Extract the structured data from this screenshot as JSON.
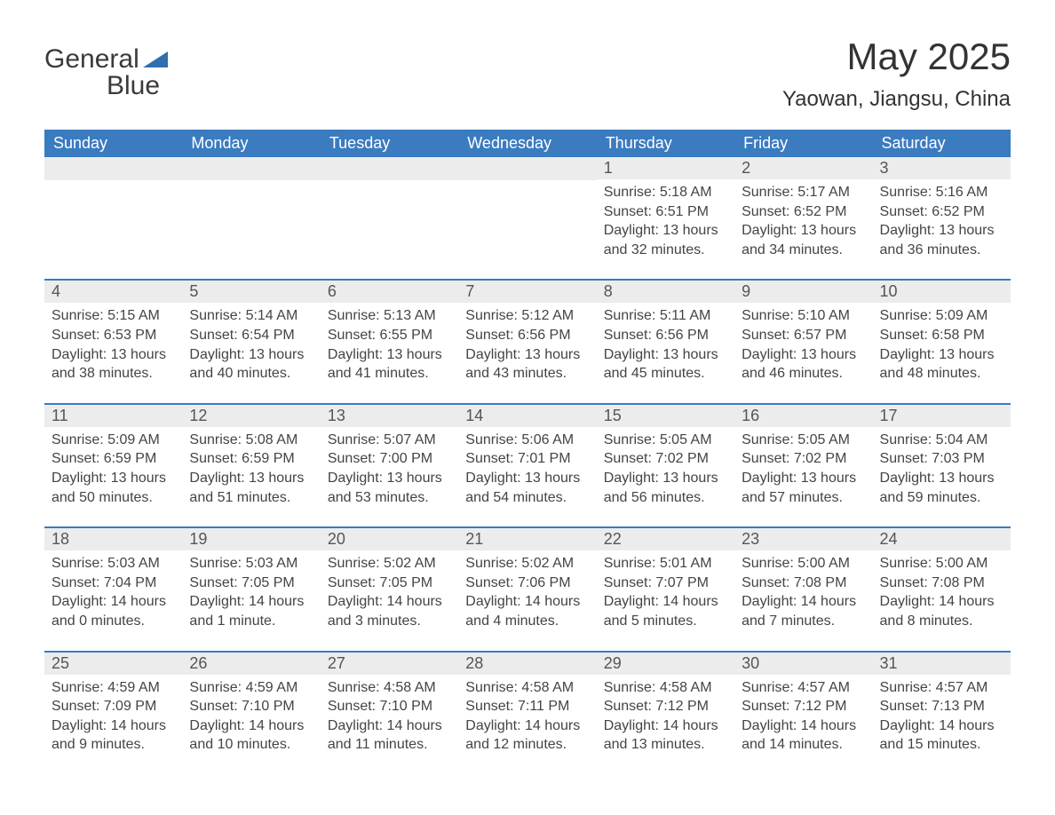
{
  "logo": {
    "word1": "General",
    "word2": "Blue",
    "tri_color": "#2f6fad",
    "text_color": "#3a3a3a"
  },
  "title": "May 2025",
  "subtitle": "Yaowan, Jiangsu, China",
  "colors": {
    "header_bg": "#3b7bbf",
    "header_fg": "#ffffff",
    "row_divider": "#3b7bbf",
    "daynum_bg": "#ececec",
    "body_text": "#444444",
    "page_bg": "#ffffff"
  },
  "layout": {
    "columns": 7,
    "rows": 5,
    "first_weekday_index": 4
  },
  "weekdays": [
    "Sunday",
    "Monday",
    "Tuesday",
    "Wednesday",
    "Thursday",
    "Friday",
    "Saturday"
  ],
  "labels": {
    "sunrise": "Sunrise",
    "sunset": "Sunset",
    "daylight": "Daylight"
  },
  "days": [
    {
      "n": 1,
      "sunrise": "5:18 AM",
      "sunset": "6:51 PM",
      "daylight": "13 hours and 32 minutes."
    },
    {
      "n": 2,
      "sunrise": "5:17 AM",
      "sunset": "6:52 PM",
      "daylight": "13 hours and 34 minutes."
    },
    {
      "n": 3,
      "sunrise": "5:16 AM",
      "sunset": "6:52 PM",
      "daylight": "13 hours and 36 minutes."
    },
    {
      "n": 4,
      "sunrise": "5:15 AM",
      "sunset": "6:53 PM",
      "daylight": "13 hours and 38 minutes."
    },
    {
      "n": 5,
      "sunrise": "5:14 AM",
      "sunset": "6:54 PM",
      "daylight": "13 hours and 40 minutes."
    },
    {
      "n": 6,
      "sunrise": "5:13 AM",
      "sunset": "6:55 PM",
      "daylight": "13 hours and 41 minutes."
    },
    {
      "n": 7,
      "sunrise": "5:12 AM",
      "sunset": "6:56 PM",
      "daylight": "13 hours and 43 minutes."
    },
    {
      "n": 8,
      "sunrise": "5:11 AM",
      "sunset": "6:56 PM",
      "daylight": "13 hours and 45 minutes."
    },
    {
      "n": 9,
      "sunrise": "5:10 AM",
      "sunset": "6:57 PM",
      "daylight": "13 hours and 46 minutes."
    },
    {
      "n": 10,
      "sunrise": "5:09 AM",
      "sunset": "6:58 PM",
      "daylight": "13 hours and 48 minutes."
    },
    {
      "n": 11,
      "sunrise": "5:09 AM",
      "sunset": "6:59 PM",
      "daylight": "13 hours and 50 minutes."
    },
    {
      "n": 12,
      "sunrise": "5:08 AM",
      "sunset": "6:59 PM",
      "daylight": "13 hours and 51 minutes."
    },
    {
      "n": 13,
      "sunrise": "5:07 AM",
      "sunset": "7:00 PM",
      "daylight": "13 hours and 53 minutes."
    },
    {
      "n": 14,
      "sunrise": "5:06 AM",
      "sunset": "7:01 PM",
      "daylight": "13 hours and 54 minutes."
    },
    {
      "n": 15,
      "sunrise": "5:05 AM",
      "sunset": "7:02 PM",
      "daylight": "13 hours and 56 minutes."
    },
    {
      "n": 16,
      "sunrise": "5:05 AM",
      "sunset": "7:02 PM",
      "daylight": "13 hours and 57 minutes."
    },
    {
      "n": 17,
      "sunrise": "5:04 AM",
      "sunset": "7:03 PM",
      "daylight": "13 hours and 59 minutes."
    },
    {
      "n": 18,
      "sunrise": "5:03 AM",
      "sunset": "7:04 PM",
      "daylight": "14 hours and 0 minutes."
    },
    {
      "n": 19,
      "sunrise": "5:03 AM",
      "sunset": "7:05 PM",
      "daylight": "14 hours and 1 minute."
    },
    {
      "n": 20,
      "sunrise": "5:02 AM",
      "sunset": "7:05 PM",
      "daylight": "14 hours and 3 minutes."
    },
    {
      "n": 21,
      "sunrise": "5:02 AM",
      "sunset": "7:06 PM",
      "daylight": "14 hours and 4 minutes."
    },
    {
      "n": 22,
      "sunrise": "5:01 AM",
      "sunset": "7:07 PM",
      "daylight": "14 hours and 5 minutes."
    },
    {
      "n": 23,
      "sunrise": "5:00 AM",
      "sunset": "7:08 PM",
      "daylight": "14 hours and 7 minutes."
    },
    {
      "n": 24,
      "sunrise": "5:00 AM",
      "sunset": "7:08 PM",
      "daylight": "14 hours and 8 minutes."
    },
    {
      "n": 25,
      "sunrise": "4:59 AM",
      "sunset": "7:09 PM",
      "daylight": "14 hours and 9 minutes."
    },
    {
      "n": 26,
      "sunrise": "4:59 AM",
      "sunset": "7:10 PM",
      "daylight": "14 hours and 10 minutes."
    },
    {
      "n": 27,
      "sunrise": "4:58 AM",
      "sunset": "7:10 PM",
      "daylight": "14 hours and 11 minutes."
    },
    {
      "n": 28,
      "sunrise": "4:58 AM",
      "sunset": "7:11 PM",
      "daylight": "14 hours and 12 minutes."
    },
    {
      "n": 29,
      "sunrise": "4:58 AM",
      "sunset": "7:12 PM",
      "daylight": "14 hours and 13 minutes."
    },
    {
      "n": 30,
      "sunrise": "4:57 AM",
      "sunset": "7:12 PM",
      "daylight": "14 hours and 14 minutes."
    },
    {
      "n": 31,
      "sunrise": "4:57 AM",
      "sunset": "7:13 PM",
      "daylight": "14 hours and 15 minutes."
    }
  ]
}
